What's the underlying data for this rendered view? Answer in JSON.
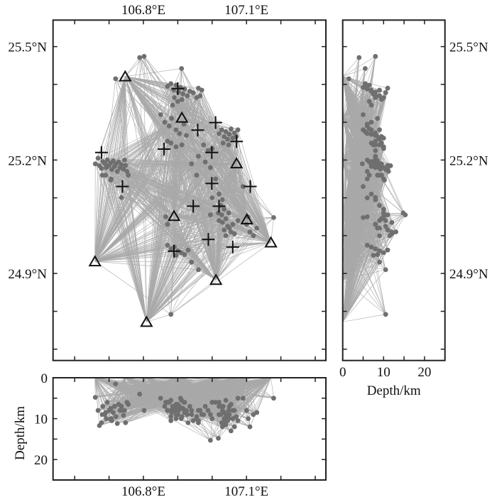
{
  "chart_data": {
    "type": "scatter",
    "map": {
      "xlim": [
        106.537,
        107.331
      ],
      "ylim": [
        24.67,
        25.57
      ],
      "x_ticks": [
        106.6,
        106.7,
        106.8,
        106.9,
        107.0,
        107.1,
        107.2,
        107.3
      ],
      "y_ticks": [
        24.7,
        24.8,
        24.9,
        25.0,
        25.1,
        25.2,
        25.3,
        25.4,
        25.5
      ],
      "x_tick_labels": [
        {
          "value": 106.8,
          "label": "106.8°E"
        },
        {
          "value": 107.1,
          "label": "107.1°E"
        }
      ],
      "y_tick_labels": [
        {
          "value": 25.5,
          "label": "25.5°N"
        },
        {
          "value": 25.2,
          "label": "25.2°N"
        },
        {
          "value": 24.9,
          "label": "24.9°N"
        }
      ],
      "grid": false
    },
    "depth_lat_panel": {
      "xlim": [
        0,
        25
      ],
      "x_ticks": [
        0,
        5,
        10,
        15,
        20,
        25
      ],
      "x_tick_labels": [
        {
          "value": 0,
          "label": "0"
        },
        {
          "value": 10,
          "label": "10"
        },
        {
          "value": 20,
          "label": "20"
        }
      ],
      "xlabel": "Depth/km"
    },
    "lon_depth_panel": {
      "ylim": [
        0,
        25
      ],
      "y_ticks": [
        0,
        5,
        10,
        15,
        20,
        25
      ],
      "y_tick_labels": [
        {
          "value": 0,
          "label": "0"
        },
        {
          "value": 10,
          "label": "10"
        },
        {
          "value": 20,
          "label": "20"
        }
      ],
      "ylabel": "Depth/km"
    },
    "colors": {
      "event": "#6f6f6f",
      "ray": "#a9a9a9",
      "station": "#111111",
      "cross": "#111111",
      "frame": "#222222"
    },
    "stations": [
      [
        106.747,
        25.421
      ],
      [
        106.912,
        25.312
      ],
      [
        107.071,
        25.191
      ],
      [
        106.889,
        25.052
      ],
      [
        107.101,
        25.043
      ],
      [
        107.171,
        24.982
      ],
      [
        106.659,
        24.932
      ],
      [
        107.011,
        24.883
      ],
      [
        106.809,
        24.772
      ]
    ],
    "crosses": [
      [
        106.9,
        25.389
      ],
      [
        107.01,
        25.299
      ],
      [
        106.958,
        25.279
      ],
      [
        107.071,
        25.249
      ],
      [
        106.86,
        25.229
      ],
      [
        106.999,
        25.22
      ],
      [
        106.678,
        25.22
      ],
      [
        106.739,
        25.13
      ],
      [
        106.999,
        25.138
      ],
      [
        107.111,
        25.13
      ],
      [
        106.945,
        25.078
      ],
      [
        107.02,
        25.078
      ],
      [
        106.989,
        24.99
      ],
      [
        107.06,
        24.97
      ],
      [
        106.889,
        24.959
      ]
    ],
    "events_lon_lat_depth": [
      [
        106.66,
        25.19,
        4.8
      ],
      [
        106.668,
        25.205,
        8
      ],
      [
        106.672,
        25.185,
        11.7
      ],
      [
        106.678,
        25.178,
        11
      ],
      [
        106.682,
        25.196,
        7
      ],
      [
        106.688,
        25.19,
        9
      ],
      [
        106.692,
        25.18,
        10
      ],
      [
        106.695,
        25.2,
        6
      ],
      [
        106.7,
        25.186,
        8
      ],
      [
        106.705,
        25.192,
        7.5
      ],
      [
        106.708,
        25.175,
        10.5
      ],
      [
        106.712,
        25.198,
        8.5
      ],
      [
        106.716,
        25.183,
        7
      ],
      [
        106.72,
        25.19,
        9.5
      ],
      [
        106.724,
        25.17,
        11.2
      ],
      [
        106.728,
        25.195,
        6.5
      ],
      [
        106.732,
        25.18,
        8
      ],
      [
        106.736,
        25.188,
        7
      ],
      [
        106.742,
        25.176,
        9.2
      ],
      [
        106.748,
        25.186,
        11
      ],
      [
        106.752,
        25.17,
        6
      ],
      [
        106.69,
        25.16,
        8.5
      ],
      [
        106.706,
        25.15,
        10
      ],
      [
        106.756,
        25.16,
        6.5
      ],
      [
        106.745,
        25.2,
        8
      ],
      [
        106.68,
        25.16,
        9
      ],
      [
        106.705,
        25.147,
        10.2
      ],
      [
        106.736,
        25.101,
        8
      ],
      [
        106.789,
        25.471,
        4
      ],
      [
        106.802,
        25.474,
        8
      ],
      [
        106.719,
        25.415,
        1.5
      ],
      [
        106.911,
        25.442,
        5.5
      ],
      [
        106.87,
        25.395,
        6
      ],
      [
        106.88,
        25.402,
        5.5
      ],
      [
        106.888,
        25.385,
        7
      ],
      [
        106.895,
        25.398,
        6.5
      ],
      [
        106.902,
        25.38,
        8
      ],
      [
        106.908,
        25.392,
        5
      ],
      [
        106.915,
        25.375,
        7.5
      ],
      [
        106.92,
        25.388,
        6
      ],
      [
        106.928,
        25.37,
        9
      ],
      [
        106.935,
        25.382,
        7
      ],
      [
        106.945,
        25.378,
        10.5
      ],
      [
        106.89,
        25.365,
        8
      ],
      [
        106.9,
        25.355,
        6.5
      ],
      [
        106.912,
        25.36,
        9.5
      ],
      [
        106.885,
        25.345,
        7
      ],
      [
        106.96,
        25.39,
        11
      ],
      [
        106.955,
        25.365,
        10
      ],
      [
        106.97,
        25.385,
        9
      ],
      [
        106.965,
        25.37,
        8
      ],
      [
        106.85,
        25.32,
        5
      ],
      [
        106.862,
        25.3,
        7
      ],
      [
        106.875,
        25.29,
        6
      ],
      [
        106.882,
        25.31,
        8.5
      ],
      [
        106.895,
        25.28,
        9
      ],
      [
        106.905,
        25.27,
        7
      ],
      [
        106.918,
        25.295,
        6
      ],
      [
        106.925,
        25.265,
        8
      ],
      [
        106.88,
        25.245,
        9.5
      ],
      [
        106.895,
        25.235,
        10
      ],
      [
        106.912,
        25.24,
        7.5
      ],
      [
        106.87,
        25.25,
        8
      ],
      [
        107.02,
        25.27,
        6
      ],
      [
        107.028,
        25.28,
        7
      ],
      [
        107.035,
        25.262,
        8.5
      ],
      [
        107.04,
        25.275,
        5.5
      ],
      [
        107.045,
        25.255,
        9
      ],
      [
        107.05,
        25.268,
        7
      ],
      [
        107.055,
        25.282,
        6.5
      ],
      [
        107.06,
        25.258,
        10
      ],
      [
        107.065,
        25.272,
        8
      ],
      [
        107.07,
        25.262,
        9.5
      ],
      [
        107.032,
        25.245,
        7
      ],
      [
        107.048,
        25.24,
        8
      ],
      [
        107.075,
        25.28,
        5
      ],
      [
        106.975,
        25.24,
        9
      ],
      [
        106.988,
        25.225,
        8
      ],
      [
        107.0,
        25.23,
        10
      ],
      [
        106.98,
        25.195,
        7
      ],
      [
        106.995,
        25.18,
        9
      ],
      [
        106.96,
        25.21,
        8
      ],
      [
        107.01,
        25.15,
        6
      ],
      [
        106.955,
        25.16,
        9.5
      ],
      [
        106.94,
        25.19,
        8
      ],
      [
        107.02,
        25.11,
        7
      ],
      [
        107.03,
        25.095,
        8
      ],
      [
        107.025,
        25.08,
        9
      ],
      [
        107.035,
        25.07,
        10
      ],
      [
        107.028,
        25.055,
        11
      ],
      [
        107.04,
        25.045,
        9.5
      ],
      [
        107.03,
        25.035,
        12
      ],
      [
        107.045,
        25.025,
        10.5
      ],
      [
        107.035,
        25.015,
        11
      ],
      [
        107.05,
        25.02,
        9
      ],
      [
        107.055,
        25.01,
        13
      ],
      [
        107.04,
        25.0,
        11.5
      ],
      [
        107.06,
        25.03,
        8
      ],
      [
        107.02,
        25.04,
        9
      ],
      [
        107.048,
        25.06,
        10
      ],
      [
        107.0,
        25.1,
        6
      ],
      [
        106.995,
        25.055,
        15.3
      ],
      [
        107.018,
        25.06,
        14.8
      ],
      [
        107.065,
        25.005,
        12
      ],
      [
        107.075,
        25.04,
        10.5
      ],
      [
        107.09,
        25.13,
        5
      ],
      [
        107.1,
        25.03,
        8
      ],
      [
        107.11,
        25.01,
        12
      ],
      [
        107.12,
        25.0,
        9
      ],
      [
        107.105,
        25.05,
        10
      ],
      [
        107.179,
        25.048,
        5
      ],
      [
        107.13,
        25.02,
        8.5
      ],
      [
        106.87,
        24.975,
        6
      ],
      [
        106.88,
        24.965,
        8
      ],
      [
        106.89,
        24.97,
        7
      ],
      [
        106.9,
        24.96,
        9
      ],
      [
        106.91,
        24.955,
        10
      ],
      [
        106.92,
        24.95,
        8.5
      ],
      [
        106.93,
        24.962,
        11
      ],
      [
        106.895,
        24.948,
        7.5
      ],
      [
        106.94,
        24.93,
        9
      ],
      [
        106.96,
        24.91,
        10.5
      ],
      [
        106.865,
        25.05,
        6
      ],
      [
        106.87,
        25.03,
        8
      ],
      [
        106.88,
        24.792,
        10.5
      ]
    ]
  }
}
